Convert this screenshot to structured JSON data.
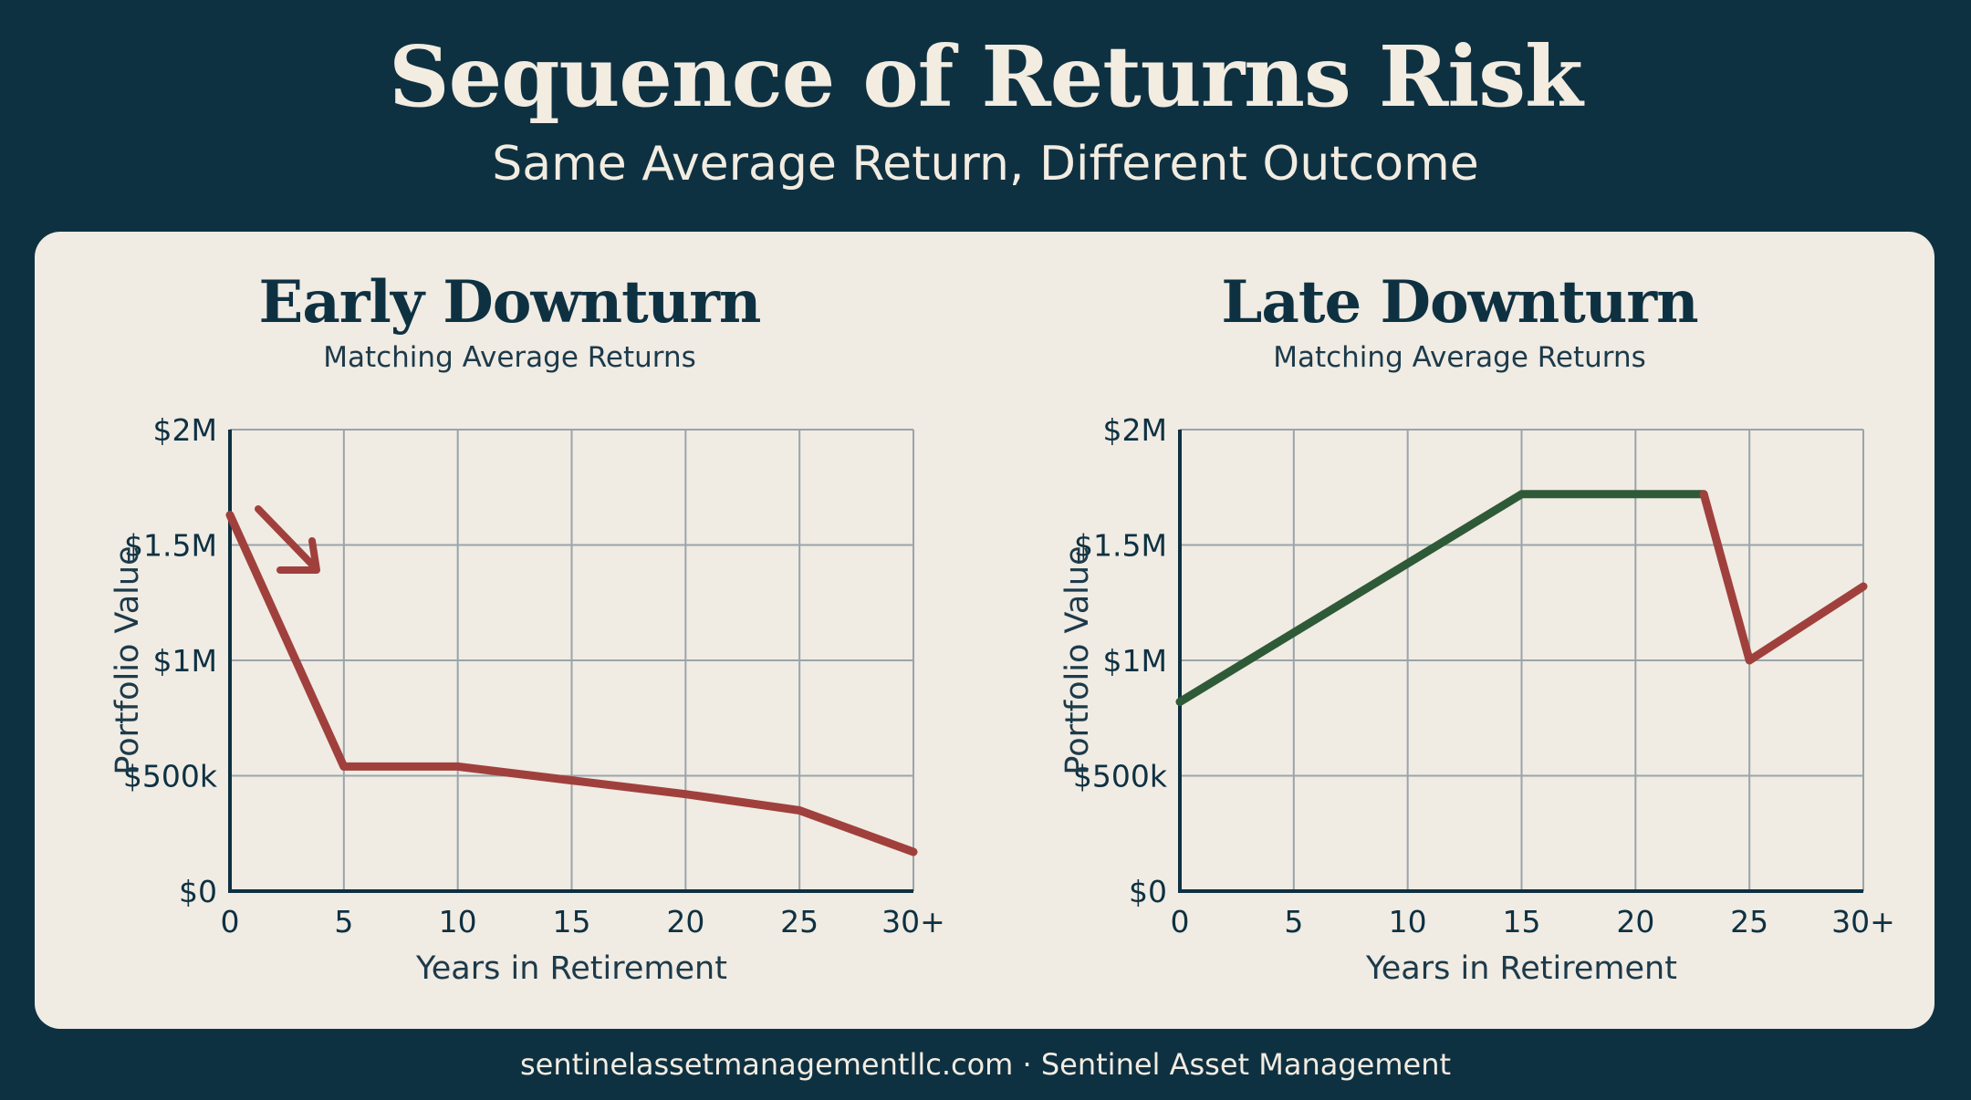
{
  "header": {
    "title": "Sequence of Returns Risk",
    "subtitle": "Same Average Return, Different Outcome"
  },
  "footer": {
    "text": "sentinelassetmanagementllc.com · Sentinel Asset Management"
  },
  "colors": {
    "background": "#0e3142",
    "panel": "#f0ebe3",
    "text_dark": "#0e3142",
    "decline": "#a0403d",
    "growth": "#2e5a37",
    "grid": "#9aa4ab"
  },
  "chart_data": [
    {
      "type": "line",
      "title": "Early Downturn",
      "subtitle": "Matching Average Returns",
      "xlabel": "Years in Retirement",
      "ylabel": "Portfolio Value",
      "xticks": [
        "0",
        "5",
        "10",
        "15",
        "20",
        "25",
        "30+"
      ],
      "yticks": [
        "$0",
        "$500k",
        "$1M",
        "$1.5M",
        "$2M"
      ],
      "xlim": [
        0,
        30
      ],
      "ylim": [
        0,
        2000000
      ],
      "grid": true,
      "annotation": "down-arrow-icon",
      "series": [
        {
          "color": "#a0403d",
          "x": [
            0,
            5,
            10,
            15,
            20,
            25,
            30
          ],
          "y": [
            1630000,
            540000,
            540000,
            480000,
            420000,
            350000,
            170000
          ]
        }
      ]
    },
    {
      "type": "line",
      "title": "Late Downturn",
      "subtitle": "Matching Average Returns",
      "xlabel": "Years in Retirement",
      "ylabel": "Portfolio Value",
      "xticks": [
        "0",
        "5",
        "10",
        "15",
        "20",
        "25",
        "30+"
      ],
      "yticks": [
        "$0",
        "$500k",
        "$1M",
        "$1.5M",
        "$2M"
      ],
      "xlim": [
        0,
        30
      ],
      "ylim": [
        0,
        2000000
      ],
      "grid": true,
      "series": [
        {
          "color": "#2e5a37",
          "x": [
            0,
            15,
            23
          ],
          "y": [
            820000,
            1720000,
            1720000
          ]
        },
        {
          "color": "#a0403d",
          "x": [
            23,
            25,
            30
          ],
          "y": [
            1720000,
            1000000,
            1320000
          ]
        }
      ]
    }
  ]
}
